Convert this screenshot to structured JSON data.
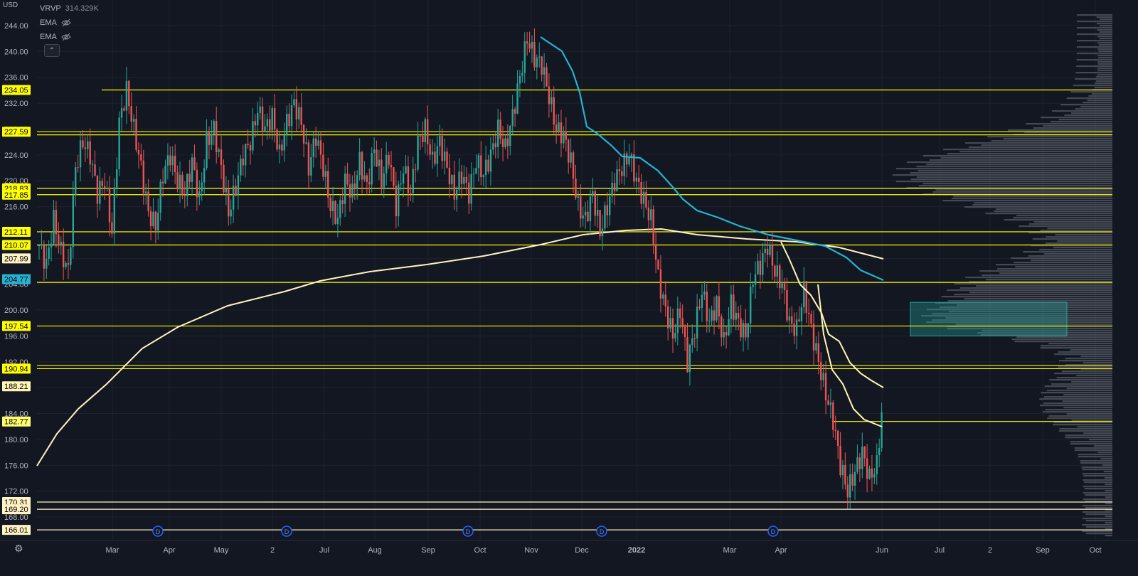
{
  "header": {
    "currency": "USD",
    "indicators": [
      {
        "name": "VRVP",
        "value": "314.329K"
      },
      {
        "name": "EMA",
        "value": ""
      },
      {
        "name": "EMA",
        "value": ""
      }
    ],
    "collapse_icon": "chevron-up-icon",
    "hidden_icon": "eye-off-icon",
    "settings_icon": "gear-icon"
  },
  "colors": {
    "background": "#131722",
    "up": "#26a69a",
    "down": "#ef5350",
    "level": "#ffff00",
    "level_white": "#fff3c4",
    "ema_fast": "#fff6b3",
    "ema_cyan": "#25b3d2",
    "sma200": "#fff1c0",
    "zone": "#26a69a",
    "profile": "#6d717c"
  },
  "chart_data": {
    "type": "candlestick",
    "y_axis": {
      "range": [
        164,
        246
      ],
      "ticks": [
        "244.00",
        "240.00",
        "236.00",
        "232.00",
        "228.00",
        "224.00",
        "220.00",
        "216.00",
        "212.00",
        "208.00",
        "204.00",
        "200.00",
        "196.00",
        "192.00",
        "188.00",
        "184.00",
        "180.00",
        "176.00",
        "172.00",
        "168.00"
      ]
    },
    "x_axis": {
      "ticks": [
        "Mar",
        "Apr",
        "May",
        "2",
        "Jul",
        "Aug",
        "Sep",
        "Oct",
        "Nov",
        "Dec",
        "2022",
        "Mar",
        "Apr",
        "Jun",
        "Jul",
        "2",
        "Sep",
        "Oct"
      ],
      "bold": [
        "2022"
      ]
    },
    "price_levels": [
      {
        "label": "234.05",
        "value": 234.05,
        "style": "yellow"
      },
      {
        "label": "227.59",
        "value": 227.59,
        "style": "yellow"
      },
      {
        "label": "",
        "value": 227.1,
        "style": "yellow"
      },
      {
        "label": "218.83",
        "value": 218.83,
        "style": "yellow"
      },
      {
        "label": "217.85",
        "value": 217.85,
        "style": "yellow"
      },
      {
        "label": "212.11",
        "value": 212.11,
        "style": "yellow"
      },
      {
        "label": "210.07",
        "value": 210.07,
        "style": "yellow"
      },
      {
        "label": "204.28",
        "value": 204.28,
        "style": "yellow"
      },
      {
        "label": "197.54",
        "value": 197.54,
        "style": "yellow"
      },
      {
        "label": "191.45",
        "value": 191.45,
        "style": "yellow"
      },
      {
        "label": "190.94",
        "value": 190.94,
        "style": "yellow"
      },
      {
        "label": "182.77",
        "value": 182.77,
        "style": "yellow"
      },
      {
        "label": "170.31",
        "value": 170.31,
        "style": "white"
      },
      {
        "label": "169.20",
        "value": 169.2,
        "style": "white"
      },
      {
        "label": "166.01",
        "value": 166.01,
        "style": "white"
      }
    ],
    "axis_badges": [
      {
        "label": "234.05",
        "value": 234.05,
        "bg": "#ffff00",
        "fg": "#000000"
      },
      {
        "label": "227.59",
        "value": 227.59,
        "bg": "#ffff00",
        "fg": "#000000"
      },
      {
        "label": "218.83",
        "value": 218.83,
        "bg": "#ffff00",
        "fg": "#000000"
      },
      {
        "label": "217.85",
        "value": 217.85,
        "bg": "#ffff00",
        "fg": "#000000"
      },
      {
        "label": "212.11",
        "value": 212.11,
        "bg": "#ffff00",
        "fg": "#000000"
      },
      {
        "label": "210.07",
        "value": 210.07,
        "bg": "#ffff00",
        "fg": "#000000"
      },
      {
        "label": "207.99",
        "value": 207.99,
        "bg": "#fff3c4",
        "fg": "#000000"
      },
      {
        "label": "204.77",
        "value": 204.77,
        "bg": "#25b3d2",
        "fg": "#000000"
      },
      {
        "label": "197.54",
        "value": 197.54,
        "bg": "#ffff00",
        "fg": "#000000"
      },
      {
        "label": "190.94",
        "value": 190.94,
        "bg": "#ffff00",
        "fg": "#000000"
      },
      {
        "label": "188.21",
        "value": 188.21,
        "bg": "#fff6b3",
        "fg": "#000000"
      },
      {
        "label": "182.77",
        "value": 182.77,
        "bg": "#ffff6e",
        "fg": "#000000"
      },
      {
        "label": "170.31",
        "value": 170.31,
        "bg": "#fff3c4",
        "fg": "#000000"
      },
      {
        "label": "169.20",
        "value": 169.2,
        "bg": "#fff3c4",
        "fg": "#000000"
      },
      {
        "label": "166.01",
        "value": 166.01,
        "bg": "#fff3c4",
        "fg": "#000000"
      }
    ],
    "zone": {
      "from": 196.0,
      "to": 201.2
    },
    "events": [
      {
        "label": "D",
        "month": "Mar"
      },
      {
        "label": "D",
        "month": "Jun"
      },
      {
        "label": "D",
        "month": "Sep"
      },
      {
        "label": "D",
        "month": "Dec"
      },
      {
        "label": "D",
        "month": "Mar"
      }
    ],
    "candles_close_path": [
      [
        0,
        210
      ],
      [
        3,
        207
      ],
      [
        6,
        214
      ],
      [
        9,
        209
      ],
      [
        12,
        206
      ],
      [
        15,
        222
      ],
      [
        18,
        226
      ],
      [
        21,
        224
      ],
      [
        24,
        218
      ],
      [
        27,
        220
      ],
      [
        30,
        212
      ],
      [
        33,
        229
      ],
      [
        36,
        234
      ],
      [
        39,
        228
      ],
      [
        42,
        222
      ],
      [
        45,
        215
      ],
      [
        48,
        213
      ],
      [
        51,
        221
      ],
      [
        54,
        224
      ],
      [
        57,
        220
      ],
      [
        60,
        218
      ],
      [
        63,
        223
      ],
      [
        66,
        217
      ],
      [
        69,
        226
      ],
      [
        72,
        228
      ],
      [
        75,
        222
      ],
      [
        78,
        215
      ],
      [
        81,
        219
      ],
      [
        84,
        224
      ],
      [
        87,
        226
      ],
      [
        90,
        231
      ],
      [
        93,
        228
      ],
      [
        96,
        230
      ],
      [
        99,
        224
      ],
      [
        102,
        229
      ],
      [
        105,
        232
      ],
      [
        108,
        229
      ],
      [
        111,
        222
      ],
      [
        114,
        227
      ],
      [
        117,
        222
      ],
      [
        120,
        216
      ],
      [
        123,
        214
      ],
      [
        126,
        220
      ],
      [
        129,
        218
      ],
      [
        132,
        223
      ],
      [
        135,
        219
      ],
      [
        138,
        225
      ],
      [
        141,
        220
      ],
      [
        144,
        224
      ],
      [
        147,
        216
      ],
      [
        150,
        222
      ],
      [
        153,
        218
      ],
      [
        156,
        226
      ],
      [
        159,
        228
      ],
      [
        162,
        223
      ],
      [
        165,
        226
      ],
      [
        168,
        222
      ],
      [
        171,
        218
      ],
      [
        174,
        221
      ],
      [
        177,
        218
      ],
      [
        180,
        223
      ],
      [
        183,
        221
      ],
      [
        186,
        224
      ],
      [
        189,
        228
      ],
      [
        192,
        225
      ],
      [
        195,
        230
      ],
      [
        198,
        236
      ],
      [
        201,
        242
      ],
      [
        204,
        239
      ],
      [
        207,
        238
      ],
      [
        210,
        233
      ],
      [
        213,
        228
      ],
      [
        216,
        227
      ],
      [
        219,
        223
      ],
      [
        222,
        216
      ],
      [
        225,
        214
      ],
      [
        228,
        218
      ],
      [
        231,
        212
      ],
      [
        234,
        216
      ],
      [
        237,
        220
      ],
      [
        240,
        222
      ],
      [
        243,
        224
      ],
      [
        246,
        220
      ],
      [
        249,
        217
      ],
      [
        252,
        214
      ],
      [
        255,
        205
      ],
      [
        258,
        200
      ],
      [
        261,
        196
      ],
      [
        264,
        200
      ],
      [
        267,
        192
      ],
      [
        270,
        197
      ],
      [
        273,
        203
      ],
      [
        276,
        198
      ],
      [
        279,
        201
      ],
      [
        282,
        195
      ],
      [
        285,
        201
      ],
      [
        288,
        198
      ],
      [
        291,
        196
      ],
      [
        294,
        205
      ],
      [
        297,
        207
      ],
      [
        300,
        210
      ],
      [
        303,
        206
      ],
      [
        306,
        204
      ],
      [
        309,
        198
      ],
      [
        312,
        197
      ],
      [
        315,
        203
      ],
      [
        318,
        197
      ],
      [
        321,
        192
      ],
      [
        324,
        187
      ],
      [
        327,
        183
      ],
      [
        330,
        176
      ],
      [
        333,
        172
      ],
      [
        336,
        175
      ],
      [
        339,
        178
      ],
      [
        342,
        174
      ],
      [
        345,
        176
      ],
      [
        348,
        188
      ]
    ],
    "ema_cyan": [
      [
        198,
        241
      ],
      [
        201,
        240
      ],
      [
        204,
        237
      ],
      [
        207,
        233
      ],
      [
        210,
        227
      ],
      [
        213,
        226
      ],
      [
        216,
        224
      ],
      [
        219,
        222
      ],
      [
        222,
        221
      ],
      [
        225,
        220
      ],
      [
        228,
        219
      ],
      [
        231,
        216
      ],
      [
        234,
        214
      ],
      [
        237,
        213
      ],
      [
        240,
        212
      ],
      [
        243,
        212
      ],
      [
        246,
        211
      ],
      [
        249,
        211
      ],
      [
        252,
        210
      ],
      [
        255,
        210
      ],
      [
        258,
        209
      ],
      [
        261,
        208
      ],
      [
        264,
        207
      ],
      [
        267,
        206
      ],
      [
        270,
        205
      ],
      [
        273,
        204.77
      ]
    ],
    "ema_fast": [
      [
        0,
        0
      ]
    ],
    "sma200": [
      [
        0,
        0
      ]
    ]
  }
}
